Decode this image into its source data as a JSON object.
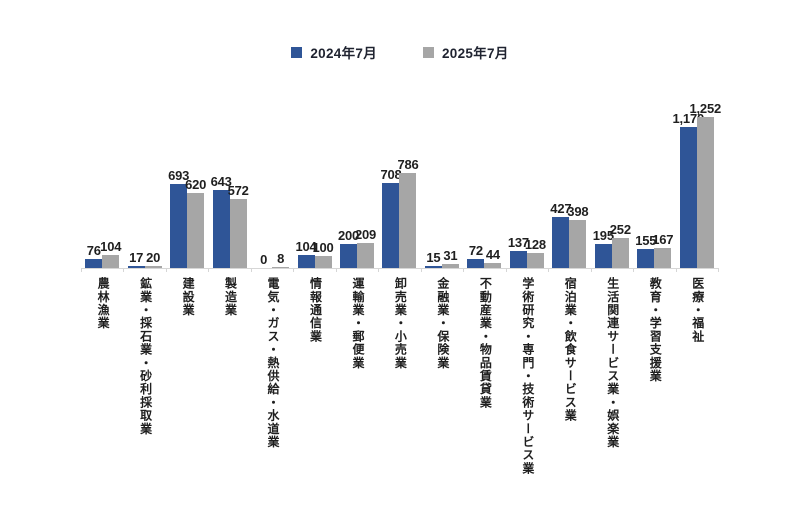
{
  "legend": {
    "items": [
      {
        "key": "2024",
        "label": "2024年7月",
        "color": "#2F5597"
      },
      {
        "key": "2025",
        "label": "2025年7月",
        "color": "#A6A6A6"
      }
    ]
  },
  "colors": {
    "series_2024": "#2F5597",
    "series_2025": "#A6A6A6",
    "axis": "#D6D6D6",
    "text": "#1F1F1F",
    "background": "#FFFFFF"
  },
  "chart_data": {
    "type": "bar",
    "title": "",
    "xlabel": "",
    "ylabel": "",
    "grid": false,
    "legend_position": "top",
    "value_labels": "outside-end",
    "category_label_orientation": "vertical",
    "ylim": [
      0,
      1252
    ],
    "categories": [
      "農林漁業",
      "鉱業・採石業・砂利採取業",
      "建設業",
      "製造業",
      "電気・ガス・熱供給・水道業",
      "情報通信業",
      "運輸業・郵便業",
      "卸売業・小売業",
      "金融業・保険業",
      "不動産業・物品賃貸業",
      "学術研究・専門・技術サービス業",
      "宿泊業・飲食サービス業",
      "生活関連サービス業・娯楽業",
      "教育・学習支援業",
      "医療・福祉"
    ],
    "series": [
      {
        "key": "2024",
        "name": "2024年7月",
        "color": "#2F5597",
        "values": [
          76,
          17,
          693,
          643,
          0,
          104,
          200,
          708,
          15,
          72,
          137,
          427,
          195,
          155,
          1170
        ]
      },
      {
        "key": "2025",
        "name": "2025年7月",
        "color": "#A6A6A6",
        "values": [
          104,
          20,
          620,
          572,
          8,
          100,
          209,
          786,
          31,
          44,
          128,
          398,
          252,
          167,
          1252
        ]
      }
    ]
  }
}
